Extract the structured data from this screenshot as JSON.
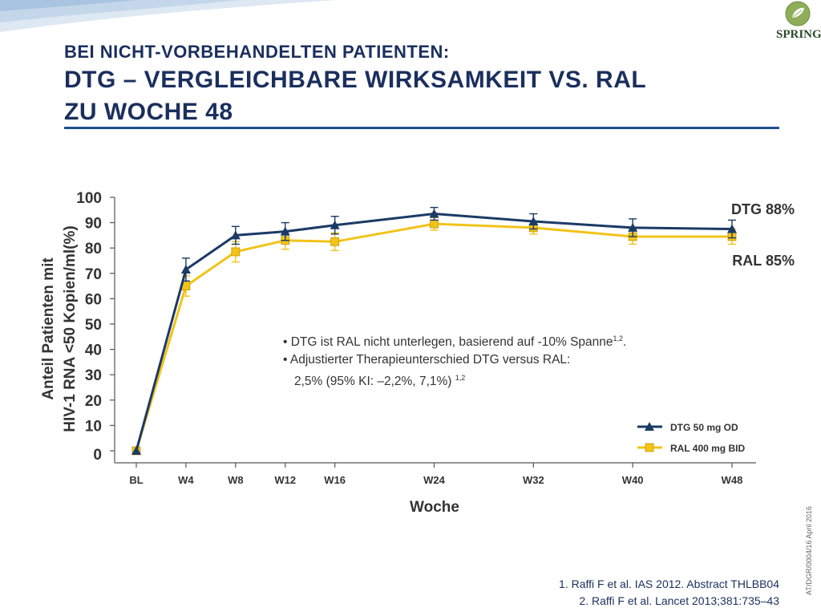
{
  "slide": {
    "subtitle": "BEI NICHT-VORBEHANDELTEN PATIENTEN:",
    "title_line1": "DTG – VERGLEICHBARE WIRKSAMKEIT  VS. RAL",
    "title_line2": "ZU WOCHE 48",
    "logo_text": "SPRING",
    "logo_superscript": "2",
    "side_code": "AT/DGR/0004/16  April 2016"
  },
  "notes": {
    "line1": "• DTG ist RAL nicht unterlegen, basierend auf -10% Spanne",
    "line1_sup": "1,2",
    "line1_end": ".",
    "line2": "• Adjustierter Therapieunterschied DTG versus RAL:",
    "line3": "2,5% (95% KI: –2,2%, 7,1%) ",
    "line3_sup": "1,2"
  },
  "references": {
    "ref1": "1. Raffi F et al. IAS 2012. Abstract THLBB04",
    "ref2": "2. Raffi F et al. Lancet 2013;381:735–43"
  },
  "colors": {
    "dtg": "#1b3a66",
    "ral": "#f2c318",
    "title": "#1b2f5e",
    "rule": "#1f4f8c"
  },
  "chart_data": {
    "type": "line",
    "title": "",
    "xlabel": "Woche",
    "ylabel_line1": "Anteil Patienten mit",
    "ylabel_line2": "HIV-1 RNA <50 Kopien/ml(%)",
    "ylim": [
      0,
      100
    ],
    "yticks": [
      0,
      10,
      20,
      30,
      40,
      50,
      60,
      70,
      80,
      90,
      100
    ],
    "x_weeks": [
      0,
      4,
      8,
      12,
      16,
      24,
      32,
      40,
      48
    ],
    "categories": [
      "BL",
      "W4",
      "W8",
      "W12",
      "W16",
      "W24",
      "W32",
      "W40",
      "W48"
    ],
    "legend_position": "bottom-right",
    "grid": false,
    "series": [
      {
        "name": "DTG 50 mg OD",
        "end_label": "DTG 88%",
        "color": "#1b3a66",
        "marker": "triangle",
        "values": [
          0,
          71.5,
          85,
          86.5,
          89,
          93.5,
          90.5,
          88,
          87.5
        ],
        "err": [
          0,
          4.5,
          3.5,
          3.5,
          3.5,
          2.5,
          3,
          3.5,
          3.5
        ]
      },
      {
        "name": "RAL 400 mg BID",
        "end_label": "RAL 85%",
        "color": "#f2c318",
        "marker": "square",
        "values": [
          0,
          65,
          78.5,
          83,
          82.5,
          89.5,
          88,
          84.5,
          84.5
        ],
        "err": [
          0,
          4,
          4,
          3.5,
          3.5,
          2.5,
          2.5,
          3,
          3
        ]
      }
    ]
  }
}
